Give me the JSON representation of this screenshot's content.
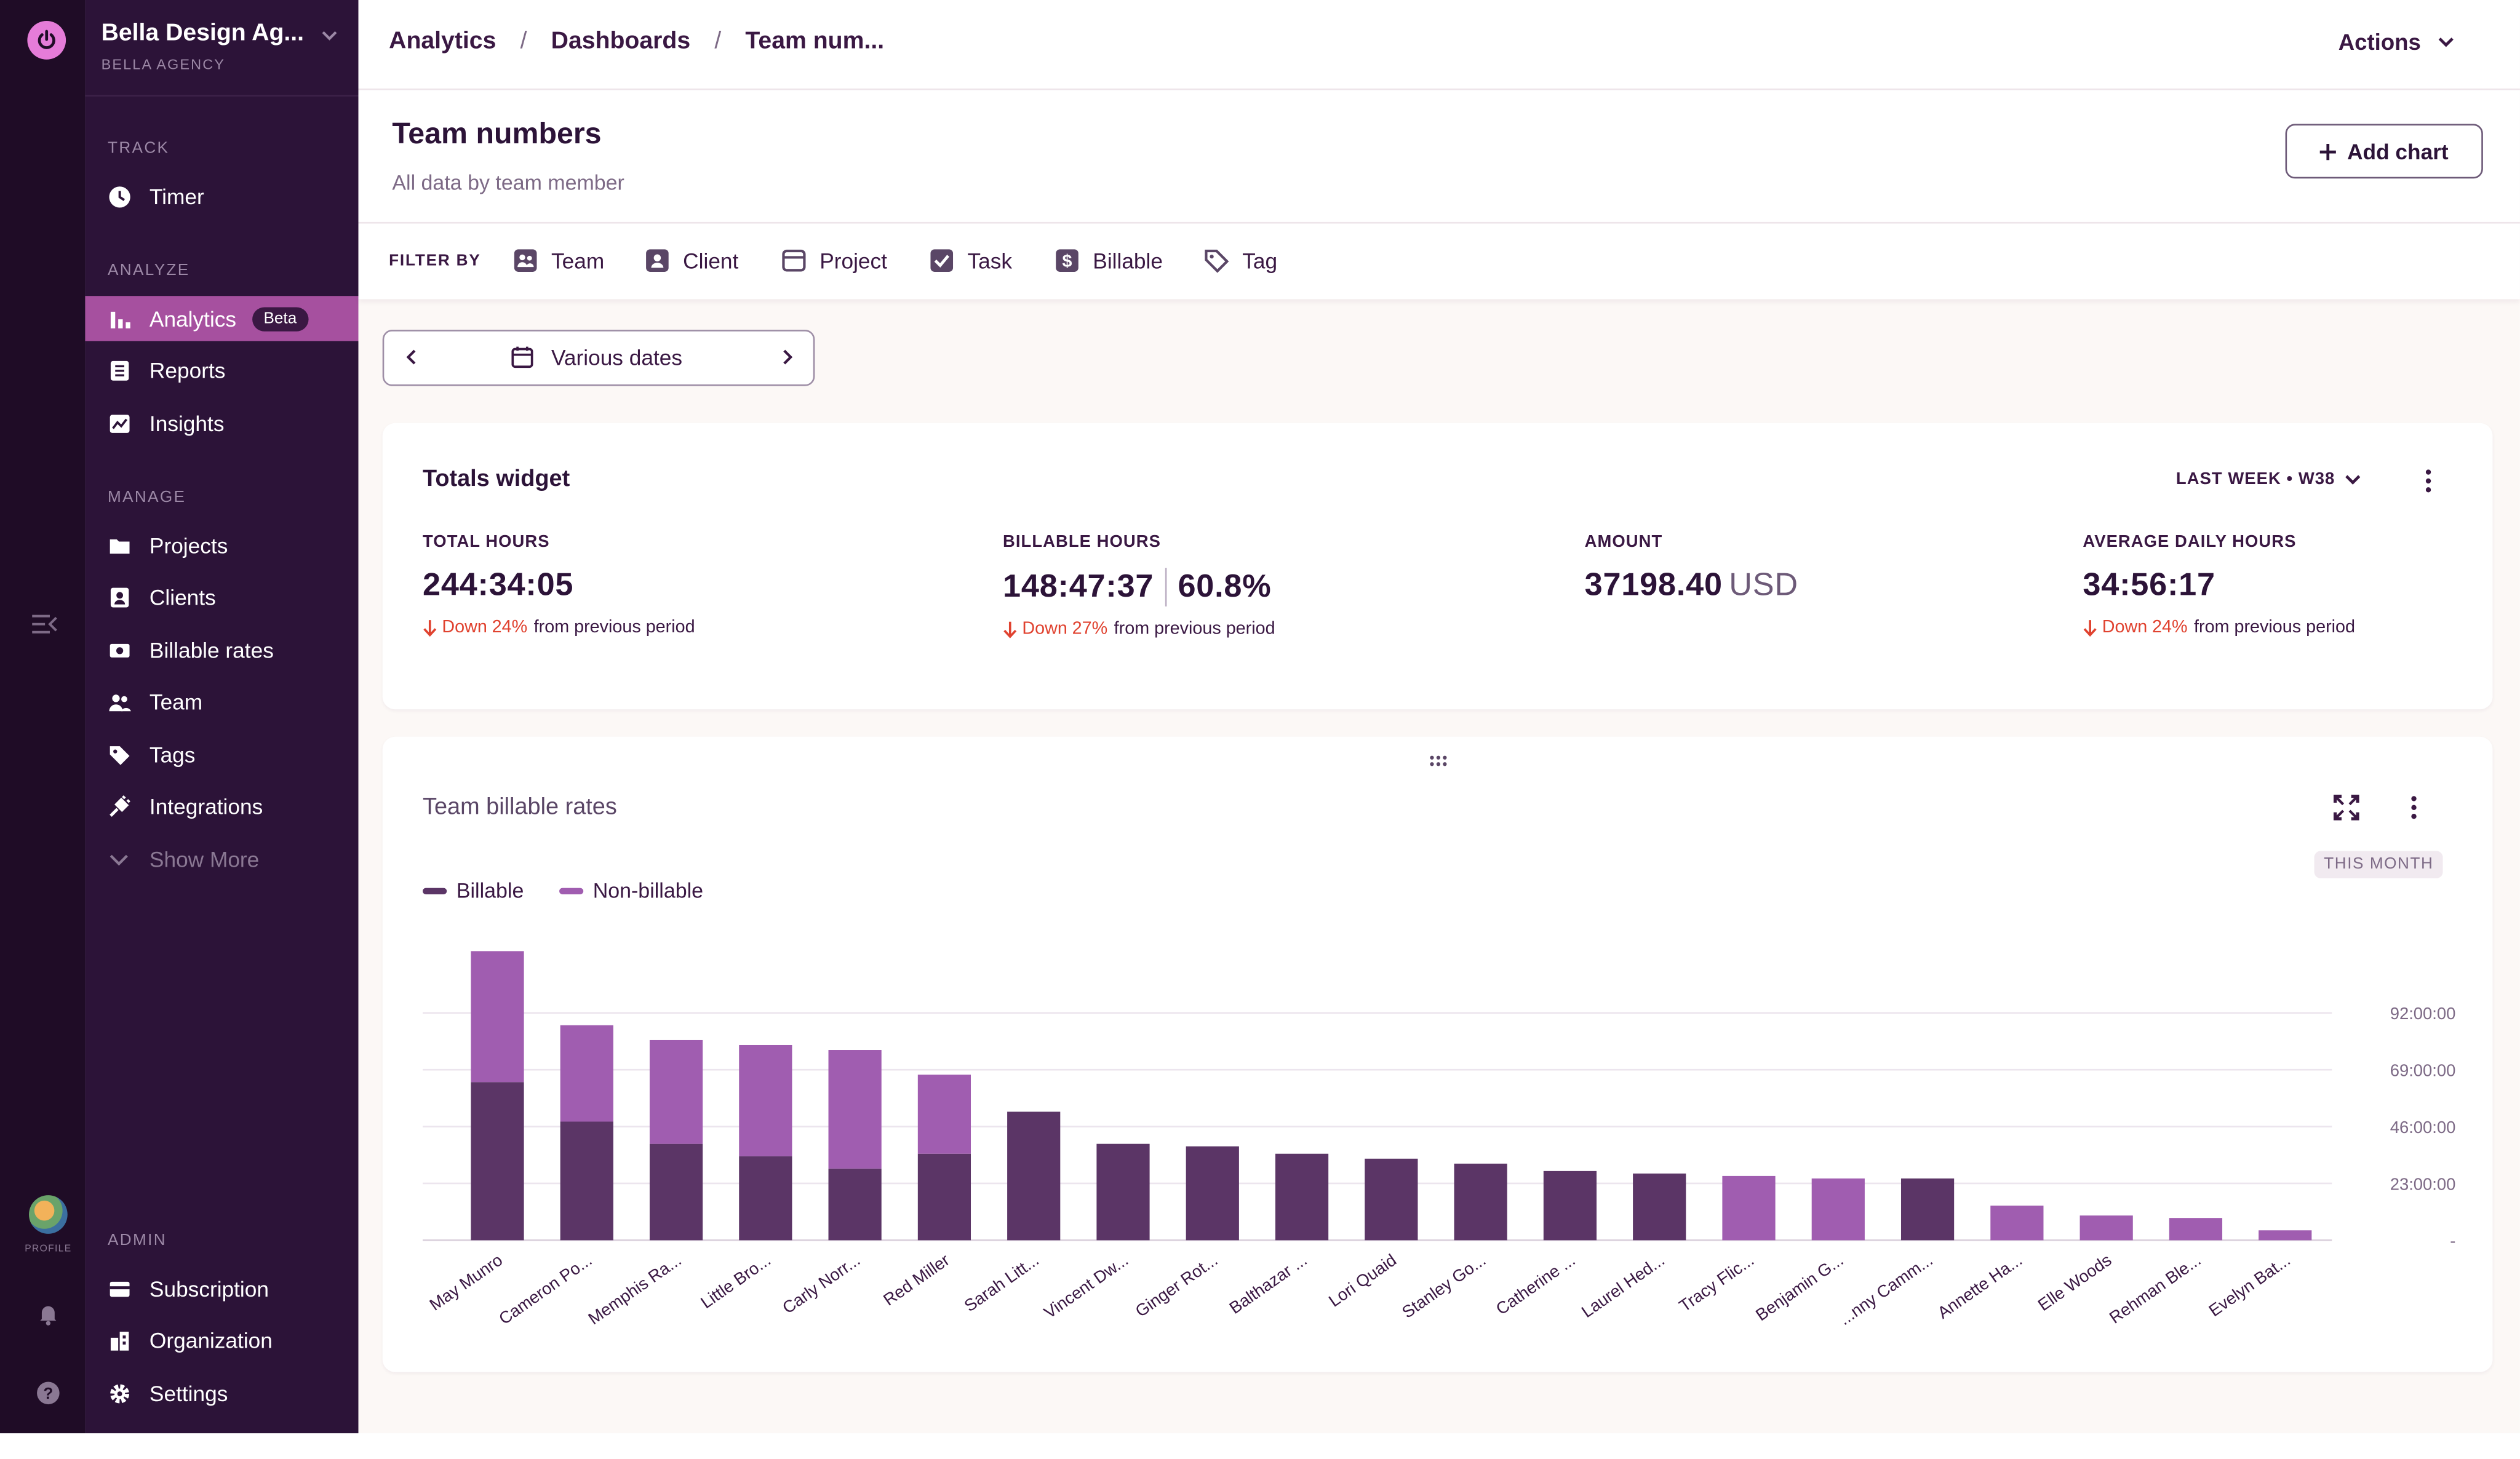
{
  "org": {
    "name": "Bella Design Ag...",
    "sub": "BELLA AGENCY"
  },
  "rail": {
    "profile_label": "PROFILE"
  },
  "sidebar": {
    "sections": {
      "track": "TRACK",
      "analyze": "ANALYZE",
      "manage": "MANAGE",
      "admin": "ADMIN"
    },
    "items": {
      "timer": "Timer",
      "analytics": "Analytics",
      "analytics_badge": "Beta",
      "reports": "Reports",
      "insights": "Insights",
      "projects": "Projects",
      "clients": "Clients",
      "billable_rates": "Billable rates",
      "team": "Team",
      "tags": "Tags",
      "integrations": "Integrations",
      "show_more": "Show More",
      "subscription": "Subscription",
      "organization": "Organization",
      "settings": "Settings"
    }
  },
  "breadcrumb": [
    "Analytics",
    "Dashboards",
    "Team num..."
  ],
  "topbar": {
    "actions_label": "Actions"
  },
  "header": {
    "title": "Team numbers",
    "subtitle": "All data by team member",
    "add_chart_label": "Add chart"
  },
  "filters": {
    "label": "FILTER BY",
    "items": [
      "Team",
      "Client",
      "Project",
      "Task",
      "Billable",
      "Tag"
    ]
  },
  "date_picker": {
    "label": "Various dates"
  },
  "totals": {
    "title": "Totals widget",
    "period": "LAST WEEK • W38",
    "metrics": [
      {
        "label": "TOTAL HOURS",
        "value": "244:34:05",
        "change_dir": "Down",
        "change_pct": "24%",
        "change_text": "from previous period"
      },
      {
        "label": "BILLABLE HOURS",
        "value": "148:47:37",
        "extra": "60.8%",
        "change_dir": "Down",
        "change_pct": "27%",
        "change_text": "from previous period"
      },
      {
        "label": "AMOUNT",
        "value": "37198.40",
        "unit": "USD"
      },
      {
        "label": "AVERAGE DAILY HOURS",
        "value": "34:56:17",
        "change_dir": "Down",
        "change_pct": "24%",
        "change_text": "from previous period"
      }
    ]
  },
  "chart_widget": {
    "title": "Team billable rates",
    "period_badge": "THIS MONTH"
  },
  "colors": {
    "billable": "#5b3566",
    "non_billable": "#a05db0",
    "accent": "#a6509f",
    "down": "#e0422f"
  },
  "chart_data": {
    "type": "bar",
    "stacked": true,
    "categories": [
      "May Munro",
      "Cameron Po...",
      "Memphis Ra...",
      "Little Bro...",
      "Carly Norr...",
      "Red Miller",
      "Sarah Litt...",
      "Vincent Dw...",
      "Ginger Rot...",
      "Balthazar ...",
      "Lori Quaid",
      "Stanley Go...",
      "Catherine ...",
      "Laurel Hed...",
      "Tracy Flic...",
      "Benjamin G...",
      "...nny Camm...",
      "Annette Ha...",
      "Elle Woods",
      "Rehman Ble...",
      "Evelyn Bat..."
    ],
    "series": [
      {
        "name": "Billable",
        "values": [
          64,
          48,
          39,
          34,
          29,
          35,
          52,
          39,
          38,
          35,
          33,
          31,
          28,
          27,
          0,
          0,
          25,
          0,
          0,
          0,
          0
        ]
      },
      {
        "name": "Non-billable",
        "values": [
          53,
          39,
          42,
          45,
          48,
          32,
          0,
          0,
          0,
          0,
          0,
          0,
          0,
          0,
          26,
          25,
          0,
          14,
          10,
          9,
          4
        ]
      }
    ],
    "yticks": [
      "92:00:00",
      "69:00:00",
      "46:00:00",
      "23:00:00",
      "-"
    ],
    "ytick_values": [
      92,
      69,
      46,
      23,
      0
    ],
    "ylim": [
      0,
      117
    ],
    "ylabel": "",
    "xlabel": "",
    "grid": true,
    "legend_position": "top-left"
  }
}
